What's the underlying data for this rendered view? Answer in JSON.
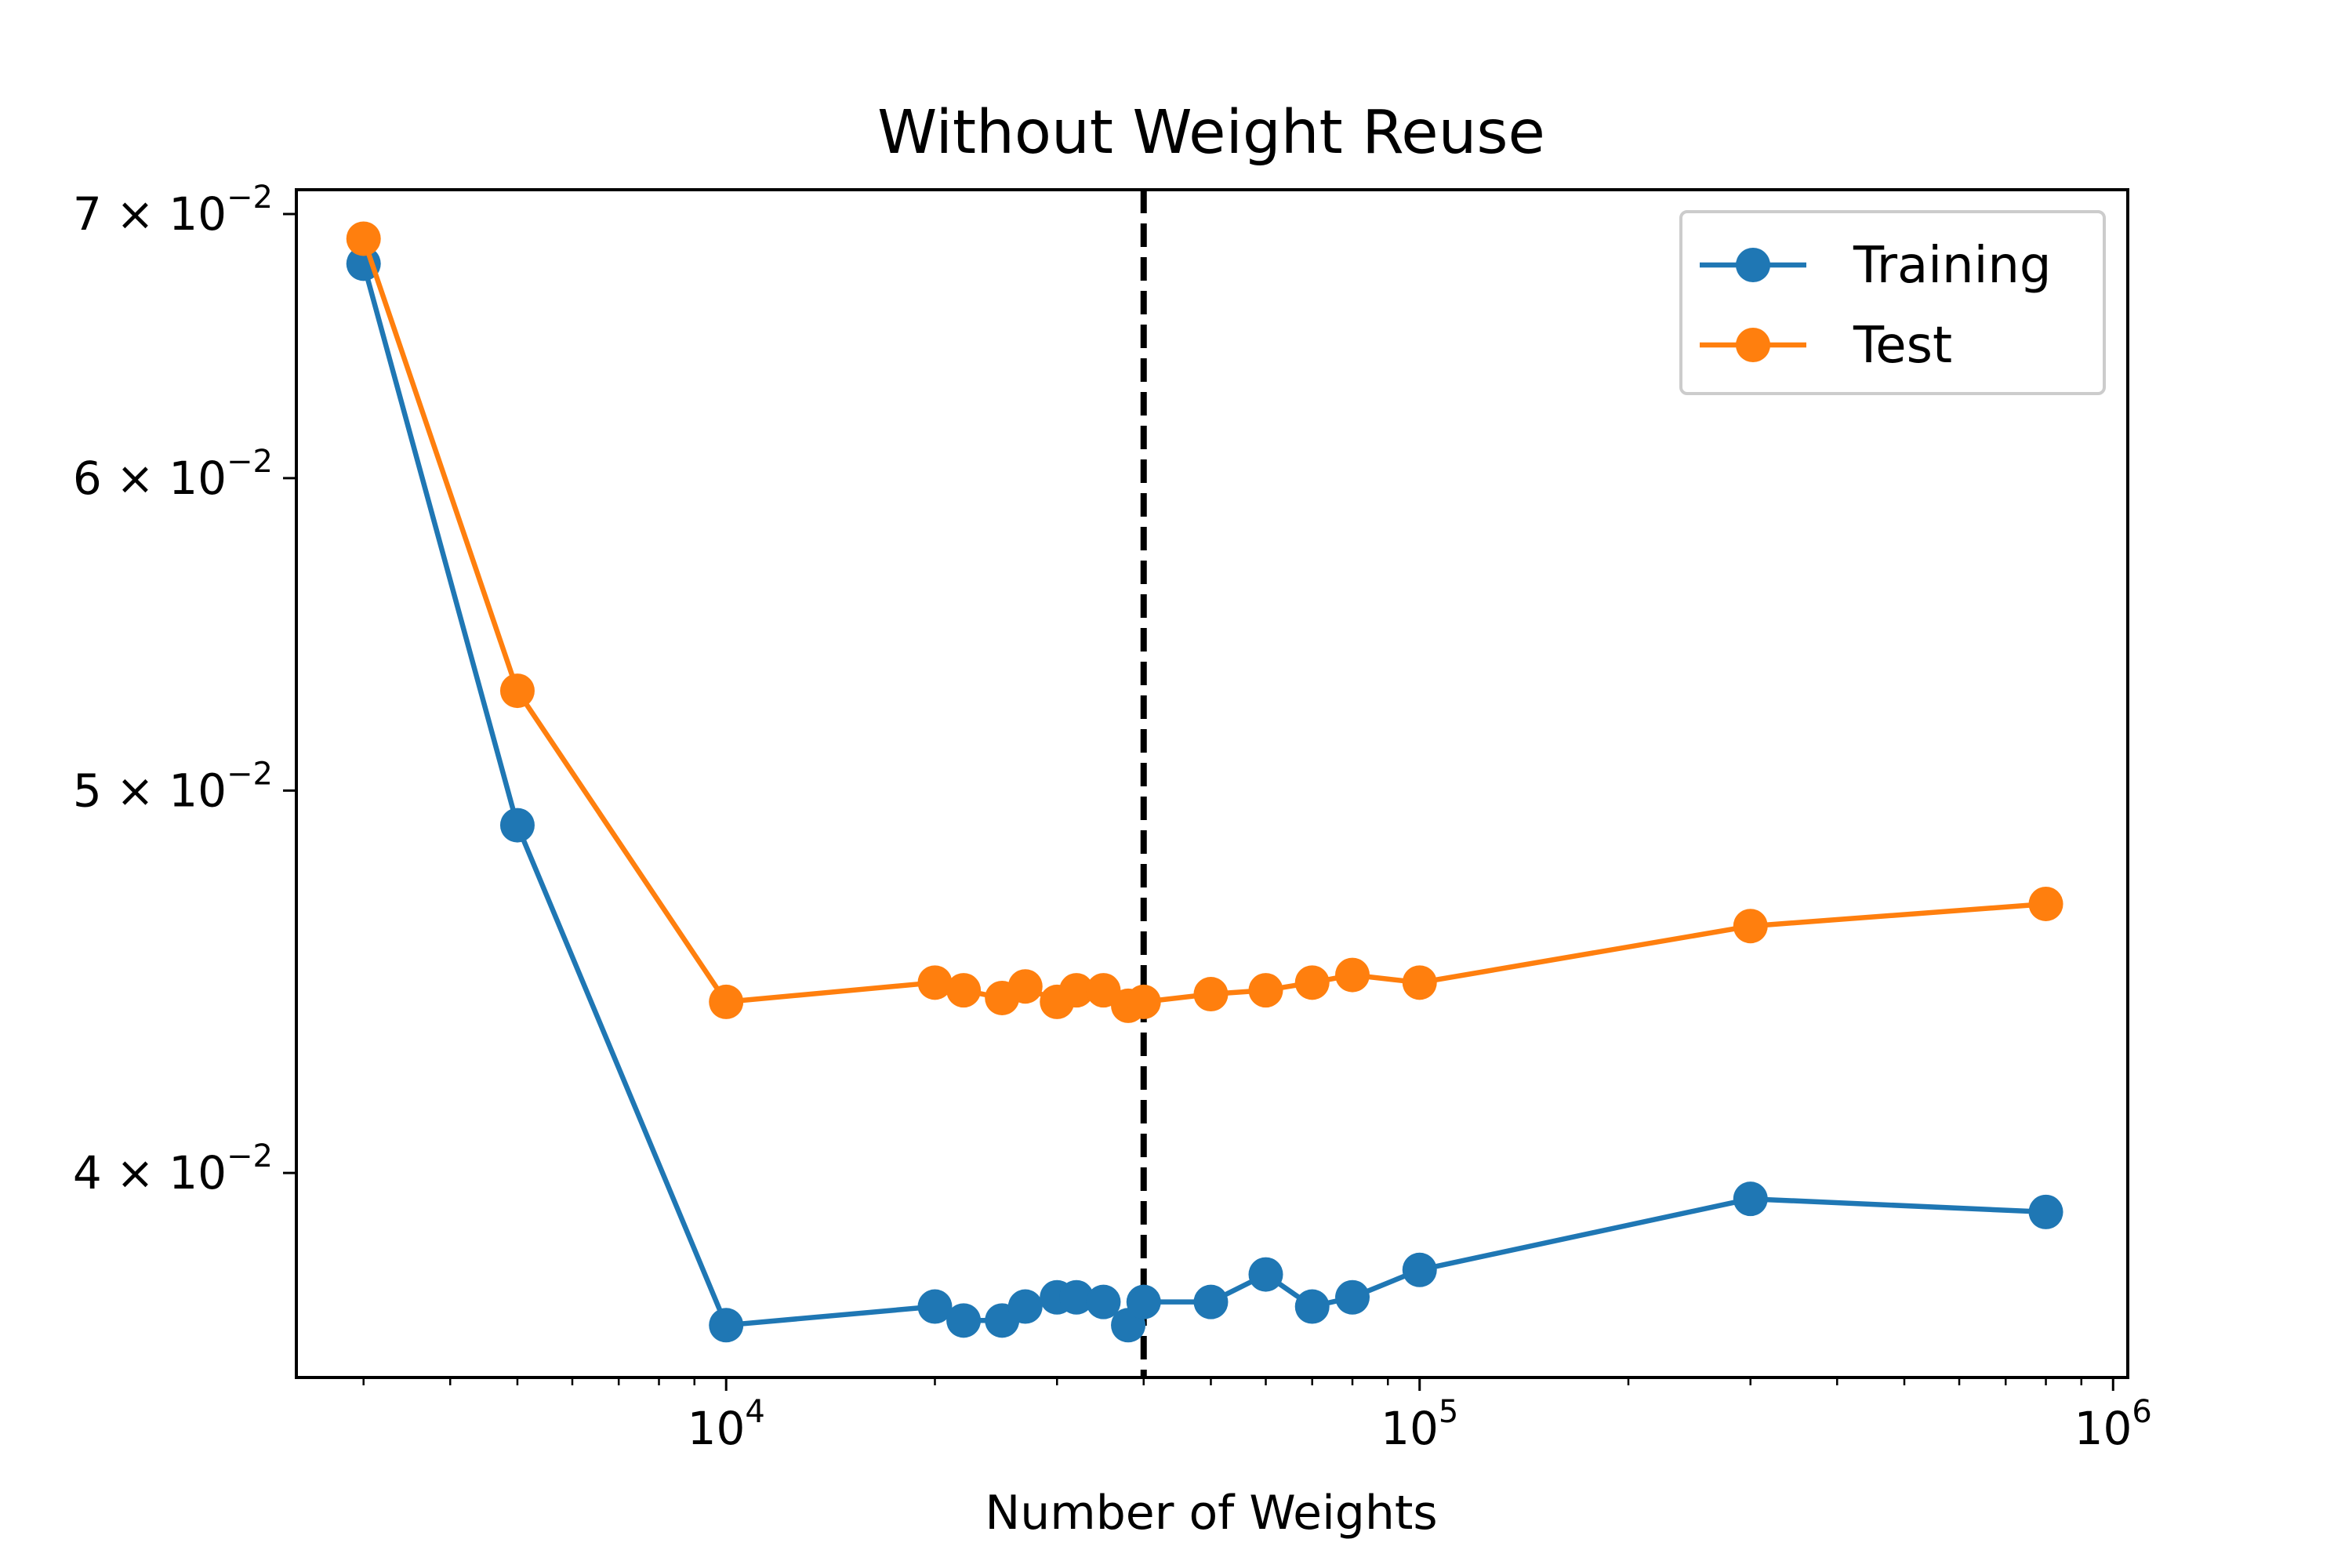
{
  "chart_data": {
    "type": "line",
    "title": "Without Weight Reuse",
    "xlabel": "Number of Weights",
    "ylabel": "",
    "xscale": "log",
    "yscale": "log",
    "xlim": [
      2400,
      1050000
    ],
    "ylim": [
      0.0355,
      0.071
    ],
    "grid": false,
    "legend_position": "top-right",
    "x_ticks": [
      {
        "value": 10000,
        "base": "10",
        "exp": "4"
      },
      {
        "value": 100000,
        "base": "10",
        "exp": "5"
      },
      {
        "value": 1000000,
        "base": "10",
        "exp": "6"
      }
    ],
    "y_ticks": [
      {
        "value": 0.04,
        "mantissa": "4",
        "times": "×",
        "base": "10",
        "exp": "−2"
      },
      {
        "value": 0.05,
        "mantissa": "5",
        "times": "×",
        "base": "10",
        "exp": "−2"
      },
      {
        "value": 0.06,
        "mantissa": "6",
        "times": "×",
        "base": "10",
        "exp": "−2"
      },
      {
        "value": 0.07,
        "mantissa": "7",
        "times": "×",
        "base": "10",
        "exp": "−2"
      }
    ],
    "reference_line": {
      "x": 40000,
      "style": "dashed",
      "color": "#000000"
    },
    "series": [
      {
        "name": "Training",
        "color": "#1f77b4",
        "points": [
          [
            3000,
            0.068
          ],
          [
            5000,
            0.049
          ],
          [
            10000,
            0.0366
          ],
          [
            20000,
            0.037
          ],
          [
            22000,
            0.0367
          ],
          [
            25000,
            0.0367
          ],
          [
            27000,
            0.037
          ],
          [
            30000,
            0.0372
          ],
          [
            32000,
            0.0372
          ],
          [
            35000,
            0.0371
          ],
          [
            38000,
            0.0366
          ],
          [
            40000,
            0.0371
          ],
          [
            50000,
            0.0371
          ],
          [
            60000,
            0.0377
          ],
          [
            70000,
            0.037
          ],
          [
            80000,
            0.0372
          ],
          [
            100000,
            0.0378
          ],
          [
            300000,
            0.0394
          ],
          [
            800000,
            0.0391
          ]
        ]
      },
      {
        "name": "Test",
        "color": "#ff7f0e",
        "points": [
          [
            3000,
            0.069
          ],
          [
            5000,
            0.053
          ],
          [
            10000,
            0.0442
          ],
          [
            20000,
            0.0447
          ],
          [
            22000,
            0.0445
          ],
          [
            25000,
            0.0443
          ],
          [
            27000,
            0.0446
          ],
          [
            30000,
            0.0442
          ],
          [
            32000,
            0.0445
          ],
          [
            35000,
            0.0445
          ],
          [
            38000,
            0.0441
          ],
          [
            40000,
            0.0442
          ],
          [
            50000,
            0.0444
          ],
          [
            60000,
            0.0445
          ],
          [
            70000,
            0.0447
          ],
          [
            80000,
            0.0449
          ],
          [
            100000,
            0.0447
          ],
          [
            300000,
            0.0462
          ],
          [
            800000,
            0.0468
          ]
        ]
      }
    ]
  }
}
